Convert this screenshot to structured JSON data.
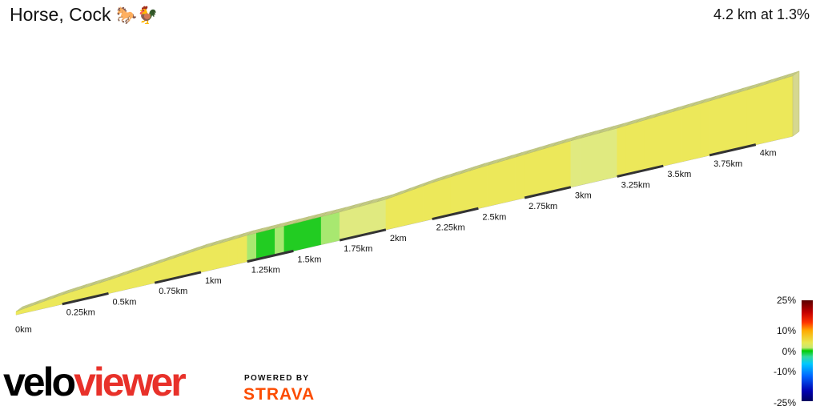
{
  "title": "Horse, Cock",
  "title_icons": [
    "horse-icon",
    "rooster-icon"
  ],
  "title_emoji": "🐎🐓",
  "summary": "4.2 km at 1.3%",
  "legend": {
    "labels": [
      "25%",
      "10%",
      "0%",
      "-10%",
      "-25%"
    ],
    "range": [
      -25,
      25
    ]
  },
  "branding": {
    "logo_part1": "velo",
    "logo_part2": "viewer",
    "powered_by": "POWERED BY",
    "strava": "STRAVA"
  },
  "colors": {
    "green": "#22cc22",
    "yellow": "#e8e870",
    "teal": "#7ee8c8",
    "logo_red": "#e8312a",
    "strava_orange": "#fc4c02"
  },
  "chart_data": {
    "type": "area",
    "style": "3d-elevation-profile",
    "xlabel": "",
    "ylabel": "",
    "x_unit": "km",
    "x_ticks": [
      "0km",
      "0.25km",
      "0.5km",
      "0.75km",
      "1km",
      "1.25km",
      "1.5km",
      "1.75km",
      "2km",
      "2.25km",
      "2.5km",
      "2.75km",
      "3km",
      "3.25km",
      "3.5km",
      "3.75km",
      "4km"
    ],
    "x_tick_values": [
      0,
      0.25,
      0.5,
      0.75,
      1,
      1.25,
      1.5,
      1.75,
      2,
      2.25,
      2.5,
      2.75,
      3,
      3.25,
      3.5,
      3.75,
      4
    ],
    "xlim": [
      0,
      4.2
    ],
    "distance_km": 4.2,
    "avg_gradient_pct": 1.3,
    "profile": [
      {
        "km": 0.0,
        "elev": 0
      },
      {
        "km": 0.25,
        "elev": 6
      },
      {
        "km": 0.5,
        "elev": 10
      },
      {
        "km": 0.75,
        "elev": 15
      },
      {
        "km": 1.0,
        "elev": 20
      },
      {
        "km": 1.25,
        "elev": 23
      },
      {
        "km": 1.5,
        "elev": 24
      },
      {
        "km": 1.75,
        "elev": 25
      },
      {
        "km": 2.0,
        "elev": 27
      },
      {
        "km": 2.25,
        "elev": 33
      },
      {
        "km": 2.5,
        "elev": 37
      },
      {
        "km": 2.75,
        "elev": 40
      },
      {
        "km": 3.0,
        "elev": 43
      },
      {
        "km": 3.25,
        "elev": 45
      },
      {
        "km": 3.5,
        "elev": 48
      },
      {
        "km": 3.75,
        "elev": 51
      },
      {
        "km": 4.0,
        "elev": 54
      },
      {
        "km": 4.2,
        "elev": 57
      }
    ]
  }
}
